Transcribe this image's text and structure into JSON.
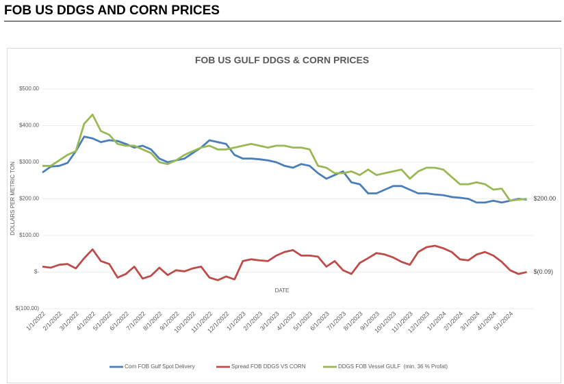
{
  "header": {
    "title": "FOB US DDGS AND CORN PRICES"
  },
  "chart_data": {
    "type": "line",
    "title": "FOB US GULF DDGS & CORN PRICES",
    "x_label": "DATE",
    "y_label": "DOLLARS PER METRIC TON",
    "categories": [
      "1/1/2022",
      null,
      "2/1/2022",
      null,
      "3/1/2022",
      null,
      "4/1/2022",
      null,
      "5/1/2022",
      null,
      "6/1/2022",
      null,
      "7/1/2022",
      null,
      "8/1/2022",
      null,
      "9/1/2022",
      null,
      "10/1/2022",
      null,
      "11/1/2022",
      null,
      "12/1/2022",
      null,
      "1/1/2023",
      null,
      "2/1/2023",
      null,
      "3/1/2023",
      null,
      "4/1/2023",
      null,
      "5/1/2023",
      null,
      "6/1/2023",
      null,
      "7/1/2023",
      null,
      "8/1/2023",
      null,
      "9/1/2023",
      null,
      "10/1/2023",
      null,
      "11/1/2023",
      null,
      "12/1/2023",
      null,
      "1/1/2024",
      null,
      "2/1/2024",
      null,
      "3/1/2024",
      null,
      "4/1/2024",
      null,
      "5/1/2024",
      null,
      null
    ],
    "series": [
      {
        "name": "Corn FOB Gulf Spot Delivery",
        "color": "#4a7ebb",
        "values": [
          272,
          288,
          290,
          298,
          330,
          370,
          365,
          355,
          360,
          358,
          350,
          340,
          345,
          335,
          310,
          300,
          305,
          310,
          325,
          340,
          360,
          355,
          350,
          320,
          310,
          310,
          308,
          305,
          300,
          290,
          285,
          295,
          290,
          270,
          255,
          265,
          275,
          245,
          240,
          215,
          215,
          225,
          235,
          235,
          225,
          215,
          215,
          212,
          210,
          205,
          203,
          200,
          190,
          190,
          195,
          190,
          195,
          200,
          198
        ]
      },
      {
        "name": "Spread FOB DDGS VS CORN",
        "color": "#be4b48",
        "values": [
          15,
          12,
          20,
          22,
          10,
          38,
          62,
          30,
          22,
          -15,
          -5,
          15,
          -18,
          -10,
          12,
          -8,
          5,
          2,
          10,
          15,
          -15,
          -22,
          -12,
          -20,
          30,
          35,
          32,
          30,
          45,
          55,
          60,
          45,
          45,
          42,
          15,
          30,
          5,
          -5,
          25,
          38,
          52,
          48,
          40,
          28,
          20,
          55,
          68,
          72,
          65,
          55,
          35,
          32,
          48,
          55,
          45,
          28,
          5,
          -5,
          -0.09
        ]
      },
      {
        "name": "DDGS FOB Vessel GULF  (min. 36 % Profat)",
        "color": "#98b954",
        "values": [
          290,
          290,
          305,
          320,
          330,
          405,
          430,
          385,
          375,
          350,
          345,
          345,
          335,
          325,
          300,
          295,
          305,
          320,
          330,
          340,
          345,
          335,
          335,
          340,
          345,
          350,
          345,
          340,
          345,
          345,
          340,
          340,
          335,
          290,
          285,
          270,
          270,
          275,
          265,
          280,
          265,
          270,
          275,
          280,
          255,
          275,
          285,
          285,
          280,
          260,
          240,
          240,
          245,
          240,
          225,
          228,
          195,
          198,
          200
        ]
      }
    ],
    "annotations": [
      "$200.00",
      "$(0.09)"
    ],
    "ylim": [
      -100,
      500
    ],
    "yticks": [
      {
        "value": -100,
        "label": "$(100.00)"
      },
      {
        "value": 0,
        "label": "$-"
      },
      {
        "value": 100,
        "label": "$100.00"
      },
      {
        "value": 200,
        "label": "$200.00"
      },
      {
        "value": 300,
        "label": "$300.00"
      },
      {
        "value": 400,
        "label": "$400.00"
      },
      {
        "value": 500,
        "label": "$500.00"
      }
    ],
    "grid": true,
    "legend": "bottom"
  }
}
